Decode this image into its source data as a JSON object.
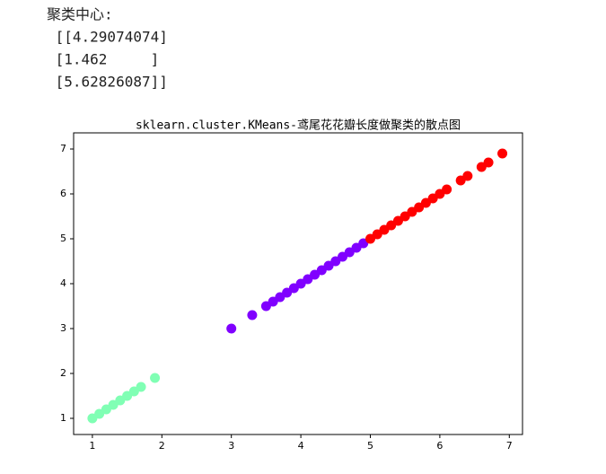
{
  "output_text": [
    "聚类中心:",
    " [[4.29074074]",
    " [1.462     ]",
    " [5.62826087]]"
  ],
  "chart_data": {
    "type": "scatter",
    "title": "sklearn.cluster.KMeans-鸢尾花花瓣长度做聚类的散点图",
    "xlim": [
      0.73,
      7.19
    ],
    "ylim": [
      0.64,
      7.36
    ],
    "xticks": [
      1,
      2,
      3,
      4,
      5,
      6,
      7
    ],
    "yticks": [
      1,
      2,
      3,
      4,
      5,
      6,
      7
    ],
    "series": [
      {
        "color": "#80ffb4",
        "x": [
          1.0,
          1.1,
          1.2,
          1.3,
          1.4,
          1.5,
          1.6,
          1.7,
          1.9
        ],
        "values": [
          1.0,
          1.1,
          1.2,
          1.3,
          1.4,
          1.5,
          1.6,
          1.7,
          1.9
        ]
      },
      {
        "color": "#8000ff",
        "x": [
          3.0,
          3.3,
          3.5,
          3.6,
          3.7,
          3.8,
          3.9,
          4.0,
          4.1,
          4.2,
          4.3,
          4.4,
          4.5,
          4.6,
          4.7,
          4.8,
          4.9
        ],
        "values": [
          3.0,
          3.3,
          3.5,
          3.6,
          3.7,
          3.8,
          3.9,
          4.0,
          4.1,
          4.2,
          4.3,
          4.4,
          4.5,
          4.6,
          4.7,
          4.8,
          4.9
        ]
      },
      {
        "color": "#ff0000",
        "x": [
          5.0,
          5.1,
          5.2,
          5.3,
          5.4,
          5.5,
          5.6,
          5.7,
          5.8,
          5.9,
          6.0,
          6.1,
          6.3,
          6.4,
          6.6,
          6.7,
          6.9
        ],
        "values": [
          5.0,
          5.1,
          5.2,
          5.3,
          5.4,
          5.5,
          5.6,
          5.7,
          5.8,
          5.9,
          6.0,
          6.1,
          6.3,
          6.4,
          6.6,
          6.7,
          6.9
        ]
      }
    ]
  }
}
